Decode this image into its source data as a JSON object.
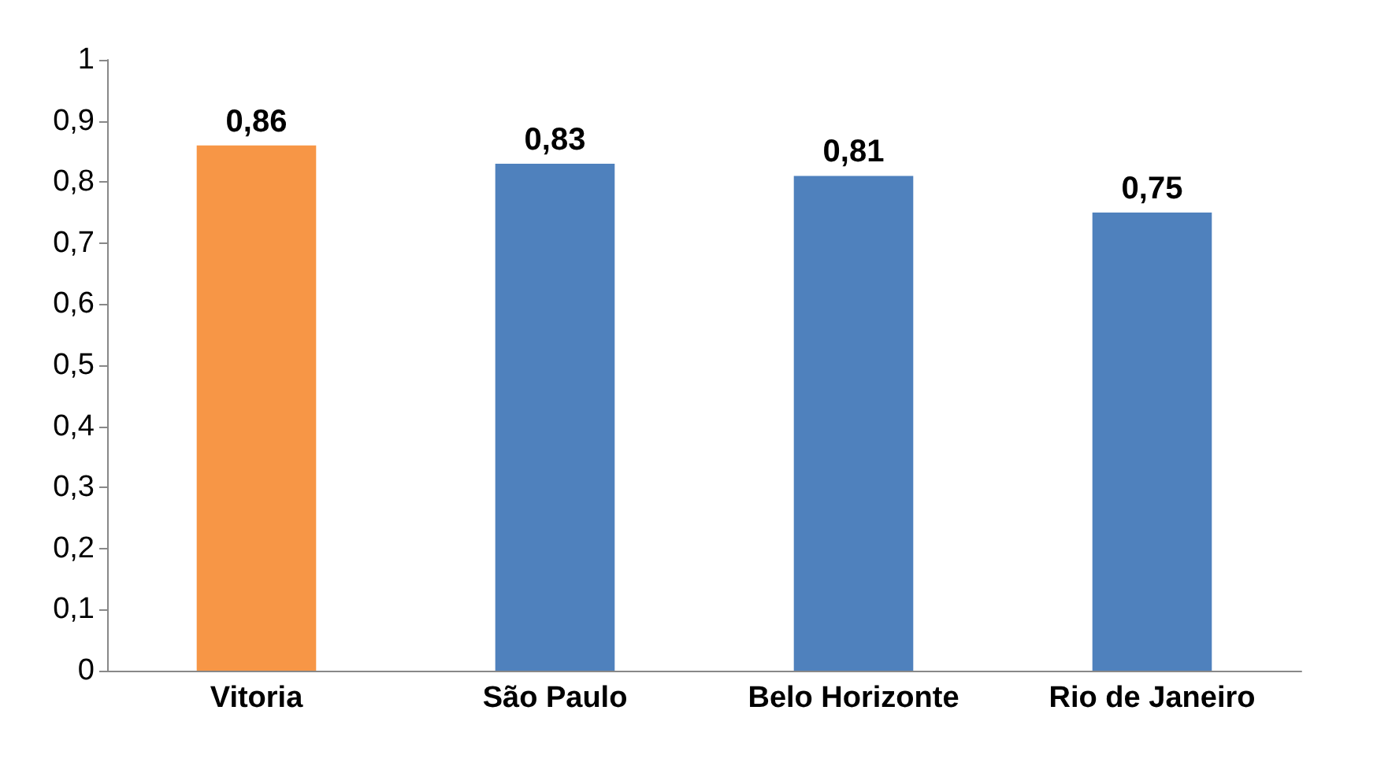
{
  "chart_data": {
    "type": "bar",
    "categories": [
      "Vitoria",
      "São Paulo",
      "Belo Horizonte",
      "Rio de Janeiro"
    ],
    "values": [
      0.86,
      0.83,
      0.81,
      0.75
    ],
    "colors": [
      "#f79646",
      "#4f81bd",
      "#4f81bd",
      "#4f81bd"
    ],
    "value_labels": [
      "0,86",
      "0,83",
      "0,81",
      "0,75"
    ],
    "ylim": [
      0,
      1
    ],
    "yticks": [
      0,
      {
        "value": 0.1,
        "label": "0,1"
      },
      {
        "value": 0.2,
        "label": "0,2"
      },
      {
        "value": 0.3,
        "label": "0,3"
      },
      {
        "value": 0.4,
        "label": "0,4"
      },
      {
        "value": 0.5,
        "label": "0,5"
      },
      {
        "value": 0.6,
        "label": "0,6"
      },
      {
        "value": 0.7,
        "label": "0,7"
      },
      {
        "value": 0.8,
        "label": "0,8"
      },
      {
        "value": 0.9,
        "label": "0,9"
      },
      1
    ],
    "grid": false
  }
}
